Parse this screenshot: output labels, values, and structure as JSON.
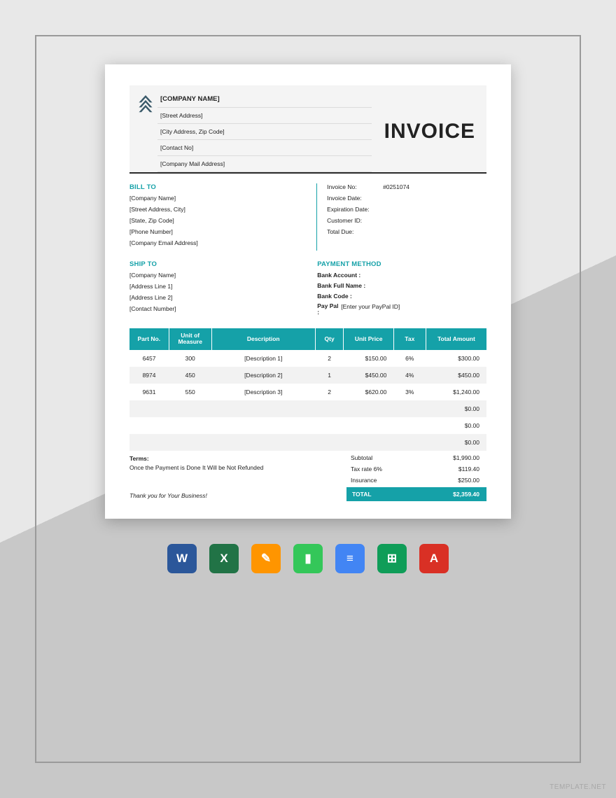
{
  "colors": {
    "accent": "#15a1a8",
    "header_bg": "#f4f4f4",
    "row_alt": "#f2f2f2",
    "frame_border": "#9a9a9a",
    "bg_light": "#e8e8e8",
    "bg_dark": "#c8c8c8"
  },
  "header": {
    "company_name": "[COMPANY NAME]",
    "street": "[Street Address]",
    "city_zip": "[City Address, Zip Code]",
    "contact": "[Contact No]",
    "mail": "[Company Mail Address]",
    "title": "INVOICE"
  },
  "bill_to": {
    "label": "BILL TO",
    "lines": [
      "[Company Name]",
      "[Street Address, City]",
      "[State, Zip Code]",
      "[Phone Number]",
      "[Company Email Address]"
    ]
  },
  "meta": {
    "invoice_no_label": "Invoice No:",
    "invoice_no": "#0251074",
    "invoice_date_label": "Invoice Date:",
    "expiration_label": "Expiration Date:",
    "customer_id_label": "Customer ID:",
    "total_due_label": "Total Due:"
  },
  "ship_to": {
    "label": "SHIP TO",
    "lines": [
      "[Company Name]",
      "[Address Line 1]",
      "[Address Line 2]",
      "[Contact Number]"
    ]
  },
  "payment": {
    "label": "PAYMENT METHOD",
    "bank_account_label": "Bank Account :",
    "bank_name_label": "Bank Full Name :",
    "bank_code_label": "Bank Code :",
    "paypal_label": "Pay Pal :",
    "paypal_value": "[Enter your PayPal ID]"
  },
  "table": {
    "headers": [
      "Part No.",
      "Unit of Measure",
      "Description",
      "Qty",
      "Unit Price",
      "Tax",
      "Total Amount"
    ],
    "rows": [
      {
        "part": "6457",
        "uom": "300",
        "desc": "[Description 1]",
        "qty": "2",
        "price": "$150.00",
        "tax": "6%",
        "total": "$300.00"
      },
      {
        "part": "8974",
        "uom": "450",
        "desc": "[Description 2]",
        "qty": "1",
        "price": "$450.00",
        "tax": "4%",
        "total": "$450.00"
      },
      {
        "part": "9631",
        "uom": "550",
        "desc": "[Description 3]",
        "qty": "2",
        "price": "$620.00",
        "tax": "3%",
        "total": "$1,240.00"
      },
      {
        "part": "",
        "uom": "",
        "desc": "",
        "qty": "",
        "price": "",
        "tax": "",
        "total": "$0.00"
      },
      {
        "part": "",
        "uom": "",
        "desc": "",
        "qty": "",
        "price": "",
        "tax": "",
        "total": "$0.00"
      },
      {
        "part": "",
        "uom": "",
        "desc": "",
        "qty": "",
        "price": "",
        "tax": "",
        "total": "$0.00"
      }
    ]
  },
  "terms": {
    "label": "Terms:",
    "text": "Once the Payment is Done It Will be Not Refunded",
    "thanks": "Thank you for Your Business!"
  },
  "summary": {
    "subtotal_label": "Subtotal",
    "subtotal": "$1,990.00",
    "tax_label": "Tax rate 6%",
    "tax": "$119.40",
    "insurance_label": "Insurance",
    "insurance": "$250.00",
    "total_label": "TOTAL",
    "total": "$2,359.40"
  },
  "apps": [
    {
      "name": "word-icon",
      "letter": "W",
      "bg": "#2b579a"
    },
    {
      "name": "excel-icon",
      "letter": "X",
      "bg": "#217346"
    },
    {
      "name": "pages-icon",
      "letter": "✎",
      "bg": "#ff9500"
    },
    {
      "name": "numbers-icon",
      "letter": "▮",
      "bg": "#34c759"
    },
    {
      "name": "gdocs-icon",
      "letter": "≡",
      "bg": "#4285f4"
    },
    {
      "name": "gsheets-icon",
      "letter": "⊞",
      "bg": "#0f9d58"
    },
    {
      "name": "pdf-icon",
      "letter": "A",
      "bg": "#d93025"
    }
  ],
  "watermark": "TEMPLATE.NET"
}
